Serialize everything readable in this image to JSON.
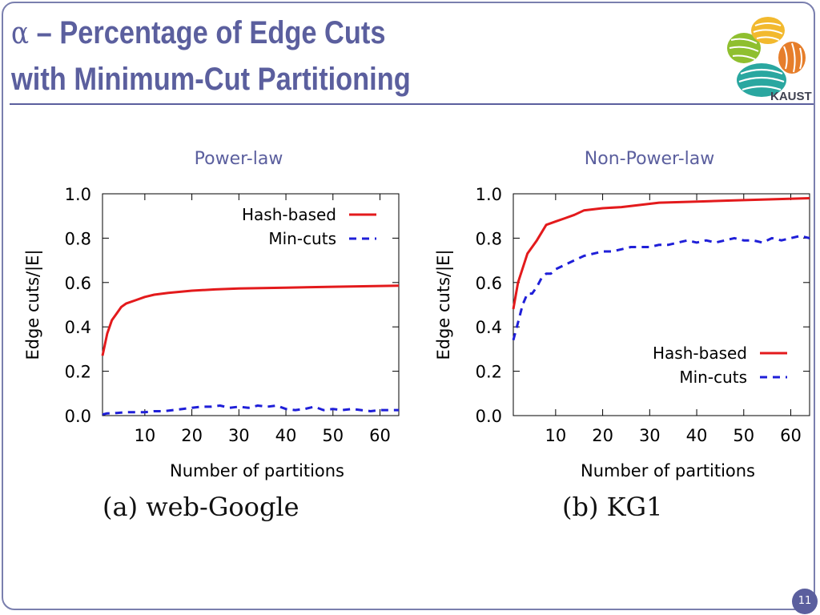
{
  "slide": {
    "title_symbol": "α",
    "title_line1": " – Percentage of Edge Cuts",
    "title_line2": "with Minimum-Cut Partitioning",
    "logo_text": "KAUST",
    "page_number": "11"
  },
  "colors": {
    "accent": "#5b5f9e",
    "series_hash": "#e31a1c",
    "series_mincut": "#1f1fd8"
  },
  "chart_data": [
    {
      "type": "line",
      "title": "Power-law",
      "caption": "(a) web-Google",
      "xlabel": "Number of partitions",
      "ylabel": "Edge cuts/|E|",
      "xlim": [
        1,
        64
      ],
      "ylim": [
        0,
        1
      ],
      "x_ticks": [
        10,
        20,
        30,
        40,
        50,
        60
      ],
      "y_ticks": [
        0.0,
        0.2,
        0.4,
        0.6,
        0.8,
        1.0
      ],
      "y_tick_labels": [
        "0.0",
        "0.2",
        "0.4",
        "0.6",
        "0.8",
        "1.0"
      ],
      "grid": false,
      "legend_position": "top-right",
      "series": [
        {
          "name": "Hash-based",
          "style": "solid",
          "color": "#e31a1c",
          "x": [
            1,
            2,
            3,
            4,
            5,
            6,
            8,
            10,
            12,
            15,
            20,
            25,
            30,
            40,
            50,
            64
          ],
          "y": [
            0.27,
            0.37,
            0.43,
            0.46,
            0.49,
            0.505,
            0.52,
            0.535,
            0.545,
            0.553,
            0.563,
            0.569,
            0.573,
            0.577,
            0.581,
            0.586
          ]
        },
        {
          "name": "Min-cuts",
          "style": "dashed",
          "color": "#1f1fd8",
          "x": [
            1,
            2,
            4,
            6,
            8,
            10,
            12,
            14,
            16,
            18,
            20,
            22,
            24,
            26,
            28,
            30,
            32,
            34,
            36,
            38,
            40,
            42,
            44,
            46,
            48,
            50,
            52,
            54,
            56,
            58,
            60,
            62,
            64
          ],
          "y": [
            0.005,
            0.01,
            0.012,
            0.015,
            0.015,
            0.015,
            0.02,
            0.02,
            0.025,
            0.03,
            0.035,
            0.04,
            0.04,
            0.045,
            0.035,
            0.04,
            0.035,
            0.045,
            0.04,
            0.045,
            0.03,
            0.025,
            0.03,
            0.04,
            0.025,
            0.03,
            0.025,
            0.03,
            0.025,
            0.02,
            0.025,
            0.025,
            0.025
          ]
        }
      ]
    },
    {
      "type": "line",
      "title": "Non-Power-law",
      "caption": "(b) KG1",
      "xlabel": "Number of partitions",
      "ylabel": "Edge cuts/|E|",
      "xlim": [
        1,
        64
      ],
      "ylim": [
        0,
        1
      ],
      "x_ticks": [
        10,
        20,
        30,
        40,
        50,
        60
      ],
      "y_ticks": [
        0.0,
        0.2,
        0.4,
        0.6,
        0.8,
        1.0
      ],
      "y_tick_labels": [
        "0.0",
        "0.2",
        "0.4",
        "0.6",
        "0.8",
        "1.0"
      ],
      "grid": false,
      "legend_position": "bottom-right",
      "series": [
        {
          "name": "Hash-based",
          "style": "solid",
          "color": "#e31a1c",
          "x": [
            1,
            2,
            4,
            6,
            8,
            10,
            12,
            14,
            16,
            20,
            24,
            28,
            32,
            40,
            48,
            56,
            64
          ],
          "y": [
            0.48,
            0.6,
            0.73,
            0.79,
            0.86,
            0.875,
            0.89,
            0.905,
            0.925,
            0.935,
            0.94,
            0.95,
            0.96,
            0.965,
            0.97,
            0.975,
            0.98
          ]
        },
        {
          "name": "Min-cuts",
          "style": "dashed",
          "color": "#1f1fd8",
          "x": [
            1,
            2,
            3,
            4,
            5,
            6,
            7,
            8,
            9,
            10,
            12,
            14,
            16,
            18,
            20,
            22,
            24,
            26,
            28,
            30,
            32,
            34,
            36,
            38,
            40,
            42,
            44,
            46,
            48,
            50,
            52,
            54,
            56,
            58,
            60,
            62,
            64
          ],
          "y": [
            0.34,
            0.42,
            0.5,
            0.55,
            0.55,
            0.58,
            0.62,
            0.64,
            0.64,
            0.66,
            0.68,
            0.7,
            0.72,
            0.73,
            0.74,
            0.74,
            0.75,
            0.76,
            0.76,
            0.76,
            0.77,
            0.77,
            0.78,
            0.79,
            0.78,
            0.79,
            0.78,
            0.79,
            0.8,
            0.79,
            0.79,
            0.78,
            0.8,
            0.79,
            0.8,
            0.81,
            0.8
          ]
        }
      ]
    }
  ]
}
